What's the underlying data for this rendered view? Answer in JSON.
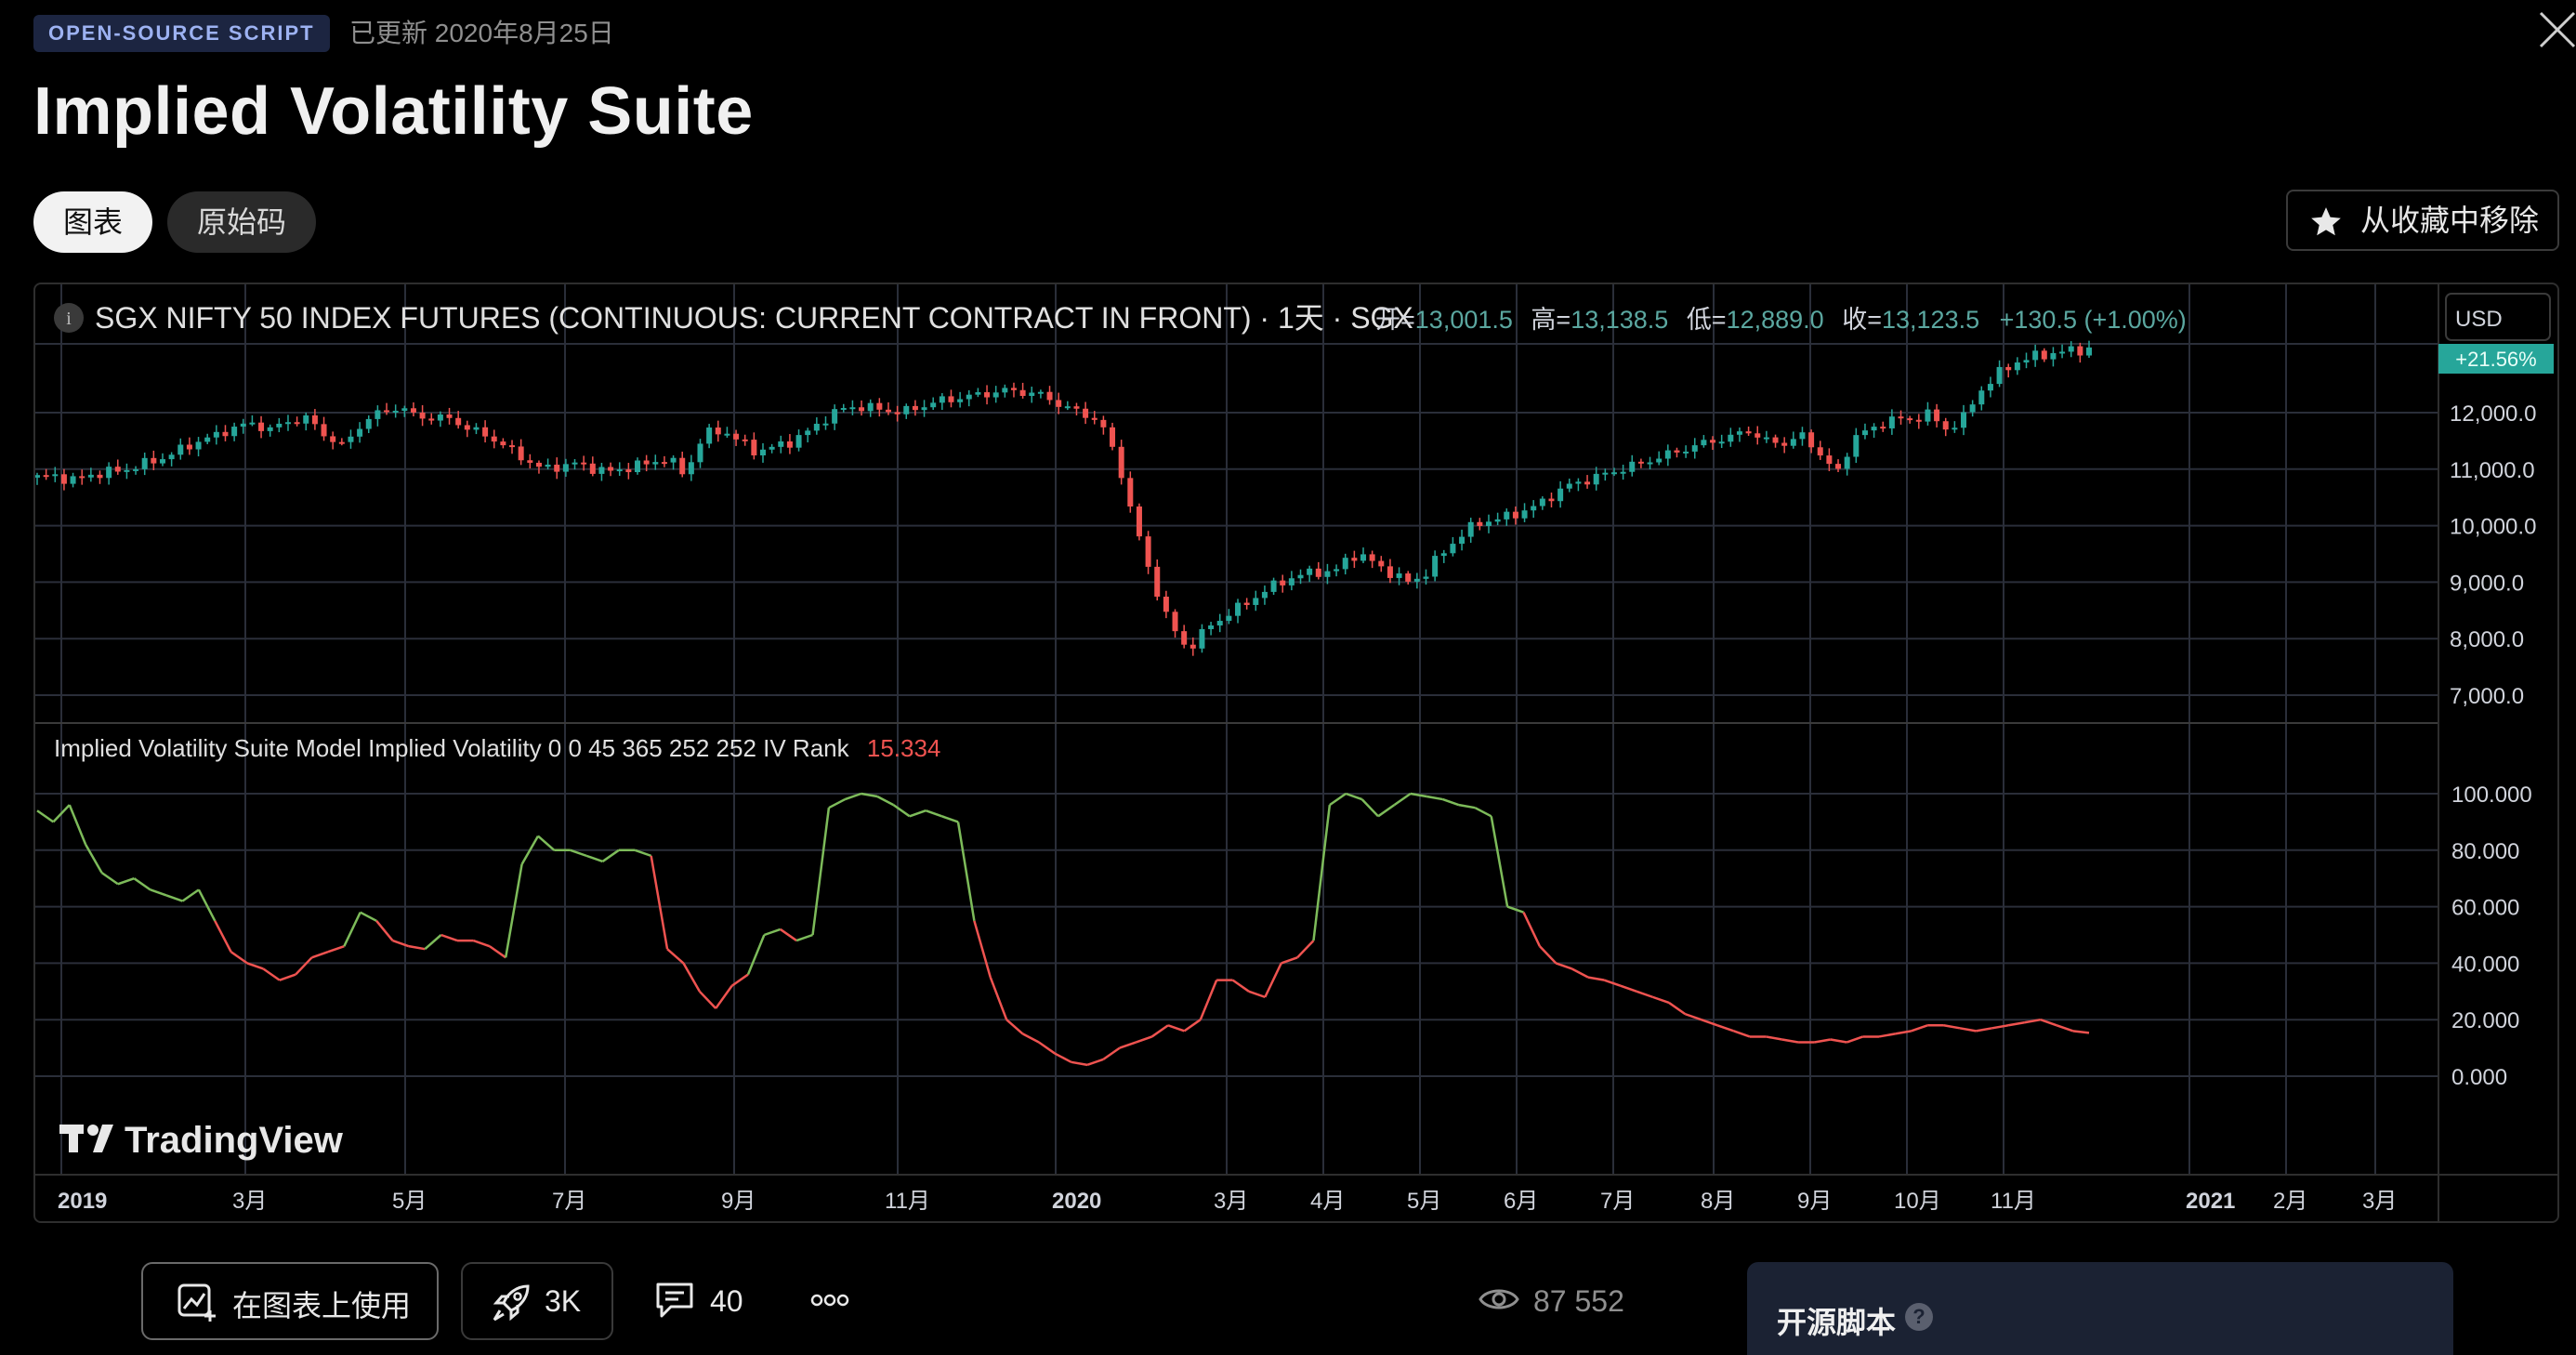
{
  "header": {
    "badge": "OPEN-SOURCE SCRIPT",
    "updated": "已更新 2020年8月25日",
    "title": "Implied Volatility Suite"
  },
  "tabs": [
    {
      "label": "图表",
      "active": true
    },
    {
      "label": "原始码",
      "active": false
    }
  ],
  "favorite_button": "从收藏中移除",
  "chart": {
    "symbol_title": "SGX NIFTY 50 INDEX FUTURES (CONTINUOUS: CURRENT CONTRACT IN FRONT) · 1天 · SGX",
    "ohlc": [
      {
        "label": "开=",
        "value": "13,001.5"
      },
      {
        "label": "高=",
        "value": "13,138.5"
      },
      {
        "label": "低=",
        "value": "12,889.0"
      },
      {
        "label": "收=",
        "value": "13,123.5"
      }
    ],
    "change": "+130.5 (+1.00%)",
    "currency": "USD",
    "last_badge": "+21.56%",
    "price_ticks": [
      "12,000.0",
      "11,000.0",
      "10,000.0",
      "9,000.0",
      "8,000.0",
      "7,000.0"
    ],
    "indicator_label": "Implied Volatility Suite Model Implied Volatility 0 0 45 365 252 252 IV Rank",
    "indicator_value": "15.334",
    "iv_ticks": [
      "100.000",
      "80.000",
      "60.000",
      "40.000",
      "20.000",
      "0.000"
    ],
    "time_ticks": [
      {
        "label": "2019",
        "bold": true
      },
      {
        "label": "3月"
      },
      {
        "label": "5月"
      },
      {
        "label": "7月"
      },
      {
        "label": "9月"
      },
      {
        "label": "11月"
      },
      {
        "label": "2020",
        "bold": true
      },
      {
        "label": "3月"
      },
      {
        "label": "4月"
      },
      {
        "label": "5月"
      },
      {
        "label": "6月"
      },
      {
        "label": "7月"
      },
      {
        "label": "8月"
      },
      {
        "label": "9月"
      },
      {
        "label": "10月"
      },
      {
        "label": "11月"
      },
      {
        "label": "2021",
        "bold": true
      },
      {
        "label": "2月"
      },
      {
        "label": "3月"
      }
    ],
    "watermark": "TradingView",
    "colors": {
      "up": "#26a69a",
      "down": "#ef5350",
      "iv_high": "#7dbb5a",
      "iv_low": "#ef5350",
      "grid": "#2a2e39",
      "accent": "#5ba7a0"
    },
    "price_series": [
      10850,
      10880,
      10800,
      10900,
      10950,
      11000,
      11100,
      11200,
      11350,
      11500,
      11600,
      11750,
      11800,
      11700,
      11850,
      11900,
      11600,
      11400,
      11800,
      12000,
      12100,
      11950,
      11900,
      11900,
      11700,
      11600,
      11400,
      11200,
      11000,
      11050,
      11100,
      11000,
      10950,
      11050,
      11100,
      11200,
      10900,
      11600,
      11700,
      11500,
      11300,
      11400,
      11500,
      11700,
      11950,
      12100,
      12100,
      12050,
      12000,
      12100,
      12200,
      12250,
      12300,
      12350,
      12400,
      12350,
      12300,
      12100,
      12000,
      11850,
      11200,
      10000,
      9000,
      8200,
      7800,
      8200,
      8400,
      8600,
      8800,
      9000,
      9100,
      9200,
      9150,
      9500,
      9400,
      9200,
      9000,
      9100,
      9500,
      9800,
      10050,
      10100,
      10200,
      10300,
      10500,
      10700,
      10800,
      10900,
      11000,
      11100,
      11200,
      11300,
      11400,
      11500,
      11550,
      11700,
      11500,
      11450,
      11600,
      11300,
      10900,
      11600,
      11700,
      11900,
      11850,
      12000,
      11700,
      11900,
      12400,
      12700,
      12900,
      13000,
      13050,
      13100,
      13123.5
    ],
    "iv_series": [
      94,
      90,
      96,
      82,
      72,
      68,
      70,
      66,
      64,
      62,
      66,
      55,
      44,
      40,
      38,
      34,
      36,
      42,
      44,
      46,
      58,
      55,
      48,
      46,
      45,
      50,
      48,
      48,
      46,
      42,
      75,
      85,
      80,
      80,
      78,
      76,
      80,
      80,
      78,
      45,
      40,
      30,
      24,
      32,
      36,
      50,
      52,
      48,
      50,
      95,
      98,
      100,
      99,
      96,
      92,
      94,
      92,
      90,
      55,
      35,
      20,
      15,
      12,
      8,
      5,
      4,
      6,
      10,
      12,
      14,
      18,
      16,
      20,
      34,
      34,
      30,
      28,
      40,
      42,
      48,
      96,
      100,
      98,
      92,
      96,
      100,
      99,
      98,
      96,
      95,
      92,
      60,
      58,
      46,
      40,
      38,
      35,
      34,
      32,
      30,
      28,
      26,
      22,
      20,
      18,
      16,
      14,
      14,
      13,
      12,
      12,
      13,
      12,
      14,
      14,
      15,
      16,
      18,
      18,
      17,
      16,
      17,
      18,
      19,
      20,
      18,
      16,
      15.334
    ],
    "price_range": [
      7000,
      12900
    ],
    "iv_range": [
      0,
      100
    ]
  },
  "actions": {
    "use_on_chart": "在图表上使用",
    "boosts": "3K",
    "comments": "40",
    "views": "87 552",
    "open_source_label": "开源脚本",
    "help": "?"
  }
}
